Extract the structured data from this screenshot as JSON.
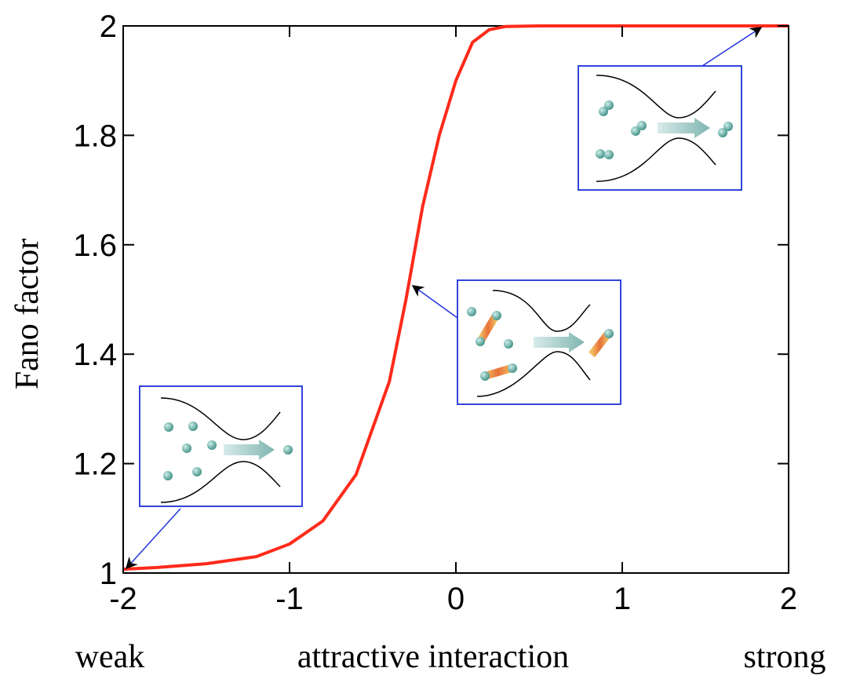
{
  "chart_data": {
    "type": "line",
    "ylabel": "Fano factor",
    "xlabel": "attractive interaction",
    "annotations": [
      "weak",
      "strong"
    ],
    "x": [
      -2,
      -1.8,
      -1.5,
      -1.2,
      -1,
      -0.8,
      -0.6,
      -0.4,
      -0.3,
      -0.2,
      -0.1,
      0,
      0.1,
      0.2,
      0.3,
      0.5,
      1,
      2
    ],
    "series": [
      {
        "color": "#ff2a1a",
        "values": [
          1.007,
          1.01,
          1.017,
          1.03,
          1.053,
          1.095,
          1.18,
          1.35,
          1.5,
          1.67,
          1.8,
          1.9,
          1.97,
          1.993,
          1.999,
          2,
          2,
          2
        ]
      }
    ],
    "xlim": [
      -2,
      2
    ],
    "xticks": [
      -2,
      -1,
      0,
      1,
      2
    ],
    "ylim": [
      1,
      2
    ],
    "yticks": [
      1,
      1.2,
      1.4,
      1.6,
      1.8,
      2
    ]
  }
}
